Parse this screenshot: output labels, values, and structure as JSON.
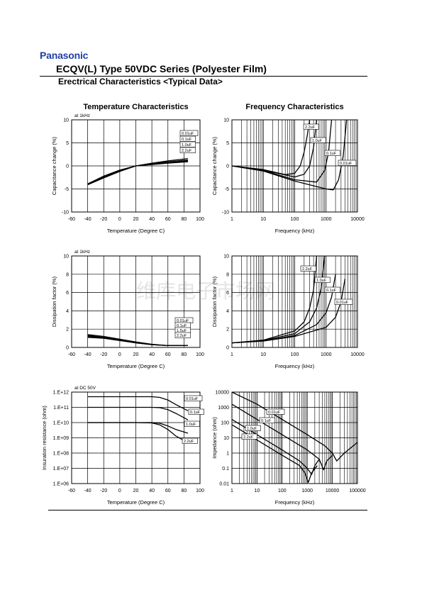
{
  "header": {
    "brand": "Panasonic",
    "title": "ECQV(L) Type 50VDC Series (Polyester Film)",
    "subtitle": "Erectrical Characteristics <Typical Data>"
  },
  "watermark": "维库电子市场网",
  "colors": {
    "brand": "#1f3fa6",
    "ink": "#000000",
    "grid": "#000000"
  },
  "chart_data": [
    {
      "type": "line",
      "title": "Temperature Characteristics",
      "note": "at 1kHz",
      "xlabel": "Temperature (Degree C)",
      "ylabel": "Capacitance change (%)",
      "xscale": "linear",
      "xlim": [
        -60,
        100
      ],
      "ylim": [
        -10,
        10
      ],
      "xticks": [
        -60,
        -40,
        -20,
        0,
        20,
        40,
        60,
        80,
        100
      ],
      "yticks": [
        -10,
        -5,
        0,
        5,
        10
      ],
      "xtick_labels": [
        "-60",
        "-40",
        "-20",
        "0",
        "20",
        "40",
        "60",
        "80",
        "100"
      ],
      "ytick_labels": [
        "-10",
        "-5",
        "0",
        "5",
        "10"
      ],
      "grid": true,
      "legend_labels": [
        "0.01uF",
        "0.1uF",
        "1.0uF",
        "2.2uF"
      ],
      "series": [
        {
          "name": "0.01uF",
          "x": [
            -40,
            -20,
            0,
            20,
            40,
            60,
            85
          ],
          "y": [
            -3.9,
            -2.2,
            -0.9,
            0,
            0.6,
            1.1,
            1.6
          ]
        },
        {
          "name": "0.1uF",
          "x": [
            -40,
            -20,
            0,
            20,
            40,
            60,
            85
          ],
          "y": [
            -3.9,
            -2.3,
            -1.0,
            0,
            0.5,
            0.9,
            1.3
          ]
        },
        {
          "name": "1.0uF",
          "x": [
            -40,
            -20,
            0,
            20,
            40,
            60,
            85
          ],
          "y": [
            -4.0,
            -2.5,
            -1.1,
            0,
            0.4,
            0.7,
            1.1
          ]
        },
        {
          "name": "2.2uF",
          "x": [
            -40,
            -20,
            0,
            20,
            40,
            60,
            85
          ],
          "y": [
            -4.1,
            -2.6,
            -1.2,
            0,
            0.3,
            0.6,
            0.9
          ]
        }
      ]
    },
    {
      "type": "line",
      "title": "Frequency Characteristics",
      "xlabel": "Frequency (kHz)",
      "ylabel": "Capacitance change (%)",
      "xscale": "log",
      "xlim": [
        1,
        10000
      ],
      "ylim": [
        -10,
        10
      ],
      "xticks": [
        1,
        10,
        100,
        1000,
        10000
      ],
      "yticks": [
        -10,
        -5,
        0,
        5,
        10
      ],
      "xtick_labels": [
        "1",
        "10",
        "100",
        "1000",
        "10000"
      ],
      "ytick_labels": [
        "-10",
        "-5",
        "0",
        "5",
        "10"
      ],
      "grid": true,
      "legend_labels": [
        "2.2uF",
        "1.0uF",
        "0.1uF",
        "0.01uF"
      ],
      "series": [
        {
          "name": "2.2uF",
          "x": [
            1,
            10,
            50,
            100,
            150,
            200,
            250,
            300
          ],
          "y": [
            0,
            -0.8,
            -1.9,
            -1.6,
            0,
            3,
            6.5,
            10
          ]
        },
        {
          "name": "1.0uF",
          "x": [
            1,
            10,
            100,
            200,
            300,
            400,
            500
          ],
          "y": [
            0,
            -0.9,
            -2.4,
            -1.8,
            0,
            4,
            10
          ]
        },
        {
          "name": "0.1uF",
          "x": [
            1,
            10,
            100,
            500,
            900,
            1200,
            1500
          ],
          "y": [
            0,
            -1.0,
            -3.0,
            -3.5,
            -1,
            3,
            10
          ]
        },
        {
          "name": "0.01uF",
          "x": [
            1,
            10,
            100,
            1000,
            1700,
            2500,
            3500,
            4500
          ],
          "y": [
            0,
            -1.1,
            -3.3,
            -5.0,
            -5.2,
            -3,
            2,
            10
          ]
        }
      ]
    },
    {
      "type": "line",
      "title": "",
      "note": "at 1kHz",
      "xlabel": "Temperature (Degree C)",
      "ylabel": "Dissipation factor (%)",
      "xscale": "linear",
      "xlim": [
        -60,
        100
      ],
      "ylim": [
        0,
        10
      ],
      "xticks": [
        -60,
        -40,
        -20,
        0,
        20,
        40,
        60,
        80,
        100
      ],
      "yticks": [
        0,
        2,
        4,
        6,
        8,
        10
      ],
      "xtick_labels": [
        "-60",
        "-40",
        "-20",
        "0",
        "20",
        "40",
        "60",
        "80",
        "100"
      ],
      "ytick_labels": [
        "0",
        "2",
        "4",
        "6",
        "8",
        "10"
      ],
      "grid": true,
      "legend_labels": [
        "0.01uF",
        "0.1uF",
        "1.5uF",
        "2.2uF"
      ],
      "series": [
        {
          "name": "0.01uF",
          "x": [
            -40,
            -20,
            0,
            20,
            40,
            60,
            85
          ],
          "y": [
            1.4,
            1.2,
            0.9,
            0.6,
            0.35,
            0.2,
            0.2
          ]
        },
        {
          "name": "0.1uF",
          "x": [
            -40,
            -20,
            0,
            20,
            40,
            60,
            85
          ],
          "y": [
            1.3,
            1.1,
            0.85,
            0.55,
            0.3,
            0.2,
            0.2
          ]
        },
        {
          "name": "1.5uF",
          "x": [
            -40,
            -20,
            0,
            20,
            40,
            60,
            85
          ],
          "y": [
            1.2,
            1.05,
            0.8,
            0.5,
            0.3,
            0.2,
            0.2
          ]
        },
        {
          "name": "2.2uF",
          "x": [
            -40,
            -20,
            0,
            20,
            40,
            60,
            85
          ],
          "y": [
            1.1,
            1.0,
            0.75,
            0.5,
            0.3,
            0.2,
            0.2
          ]
        }
      ]
    },
    {
      "type": "line",
      "title": "",
      "xlabel": "Frequency (kHz)",
      "ylabel": "Dissipation factor (%)",
      "xscale": "log",
      "xlim": [
        1,
        10000
      ],
      "ylim": [
        0,
        10
      ],
      "xticks": [
        1,
        10,
        100,
        1000,
        10000
      ],
      "yticks": [
        0,
        2,
        4,
        6,
        8,
        10
      ],
      "xtick_labels": [
        "1",
        "10",
        "100",
        "1000",
        "10000"
      ],
      "ytick_labels": [
        "0",
        "2",
        "4",
        "6",
        "8",
        "10"
      ],
      "grid": true,
      "legend_labels": [
        "2.2uF",
        "1.0uF",
        "0.1uF",
        "0.01uF"
      ],
      "series": [
        {
          "name": "2.2uF",
          "x": [
            1,
            10,
            100,
            200,
            300,
            400,
            500
          ],
          "y": [
            0.5,
            0.8,
            1.8,
            2.8,
            4.3,
            6.3,
            10
          ]
        },
        {
          "name": "1.0uF",
          "x": [
            1,
            10,
            100,
            300,
            500,
            700,
            900
          ],
          "y": [
            0.5,
            0.75,
            1.5,
            2.8,
            4.3,
            6.5,
            10
          ]
        },
        {
          "name": "0.1uF",
          "x": [
            1,
            10,
            100,
            500,
            1000,
            1500,
            2000
          ],
          "y": [
            0.5,
            0.7,
            1.3,
            2.5,
            3.8,
            5.5,
            8
          ]
        },
        {
          "name": "0.01uF",
          "x": [
            1,
            10,
            100,
            1000,
            2000,
            3000,
            4000
          ],
          "y": [
            0.5,
            0.7,
            1.2,
            2.2,
            3.3,
            5,
            7.5
          ]
        }
      ]
    },
    {
      "type": "line",
      "title": "",
      "note": "at DC 50V",
      "xlabel": "Temperature (Degree C)",
      "ylabel": "Insuration resistance (ohm)",
      "xscale": "linear",
      "yscale": "log",
      "xlim": [
        -60,
        100
      ],
      "ylim": [
        1000000,
        1000000000000
      ],
      "xticks": [
        -60,
        -40,
        -20,
        0,
        20,
        40,
        60,
        80,
        100
      ],
      "yticks": [
        1000000,
        10000000,
        100000000,
        1000000000,
        10000000000,
        100000000000,
        1000000000000
      ],
      "xtick_labels": [
        "-60",
        "-40",
        "-20",
        "0",
        "20",
        "40",
        "60",
        "80",
        "100"
      ],
      "ytick_labels": [
        "1.E+06",
        "1.E+07",
        "1.E+08",
        "1.E+09",
        "1.E+10",
        "1.E+11",
        "1.E+12"
      ],
      "grid": true,
      "legend_labels": [
        "0.01uF",
        "0.1uF",
        "1.0uF",
        "2.2uF"
      ],
      "series": [
        {
          "name": "0.01uF",
          "x": [
            -40,
            -20,
            0,
            20,
            40,
            50,
            60,
            70,
            85
          ],
          "y": [
            500000000000,
            500000000000,
            500000000000,
            500000000000,
            500000000000,
            450000000000,
            300000000000,
            150000000000,
            60000000000
          ]
        },
        {
          "name": "0.1uF",
          "x": [
            -40,
            -20,
            0,
            20,
            40,
            50,
            60,
            70,
            85
          ],
          "y": [
            100000000000,
            100000000000,
            100000000000,
            100000000000,
            100000000000,
            95000000000,
            70000000000,
            40000000000,
            15000000000
          ]
        },
        {
          "name": "1.0uF",
          "x": [
            -40,
            -20,
            0,
            20,
            40,
            50,
            60,
            70,
            85
          ],
          "y": [
            10000000000,
            10000000000,
            10000000000,
            10000000000,
            10000000000,
            9000000000,
            6000000000,
            3500000000,
            2000000000
          ]
        },
        {
          "name": "2.2uF",
          "x": [
            -40,
            -20,
            0,
            20,
            40,
            50,
            60,
            70,
            85
          ],
          "y": [
            10000000000,
            10000000000,
            10000000000,
            10000000000,
            9500000000,
            7000000000,
            3500000000,
            1300000000,
            500000000
          ]
        }
      ]
    },
    {
      "type": "line",
      "title": "",
      "xlabel": "Frequency (kHz)",
      "ylabel": "Impedance (ohm)",
      "xscale": "log",
      "yscale": "log",
      "xlim": [
        1,
        100000
      ],
      "ylim": [
        0.01,
        10000
      ],
      "xticks": [
        1,
        10,
        100,
        1000,
        10000,
        100000
      ],
      "yticks": [
        0.01,
        0.1,
        1,
        10,
        100,
        1000,
        10000
      ],
      "xtick_labels": [
        "1",
        "10",
        "100",
        "1000",
        "10000",
        "100000"
      ],
      "ytick_labels": [
        "0.01",
        "0.1",
        "1",
        "10",
        "100",
        "1000",
        "10000"
      ],
      "grid": true,
      "legend_labels": [
        "0.01uF",
        "0.1uF",
        "1.0uF",
        "2.2uF"
      ],
      "series": [
        {
          "name": "0.01uF",
          "x": [
            1,
            10,
            100,
            1000,
            5000,
            10000,
            15000,
            30000,
            100000
          ],
          "y": [
            16000,
            1600,
            160,
            16,
            3,
            1,
            0.3,
            1,
            5
          ]
        },
        {
          "name": "0.1uF",
          "x": [
            1,
            10,
            100,
            1000,
            3000,
            4500,
            6000,
            10000
          ],
          "y": [
            1600,
            160,
            16,
            1.6,
            0.4,
            0.08,
            0.3,
            0.7
          ]
        },
        {
          "name": "1.0uF",
          "x": [
            1,
            10,
            100,
            500,
            1000,
            1500,
            2000,
            3000
          ],
          "y": [
            160,
            16,
            1.6,
            0.3,
            0.1,
            0.04,
            0.15,
            0.4
          ]
        },
        {
          "name": "2.2uF",
          "x": [
            1,
            10,
            100,
            500,
            800,
            1100,
            1500,
            2500
          ],
          "y": [
            72,
            7.2,
            0.72,
            0.15,
            0.05,
            0.012,
            0.05,
            0.15
          ]
        }
      ]
    }
  ]
}
